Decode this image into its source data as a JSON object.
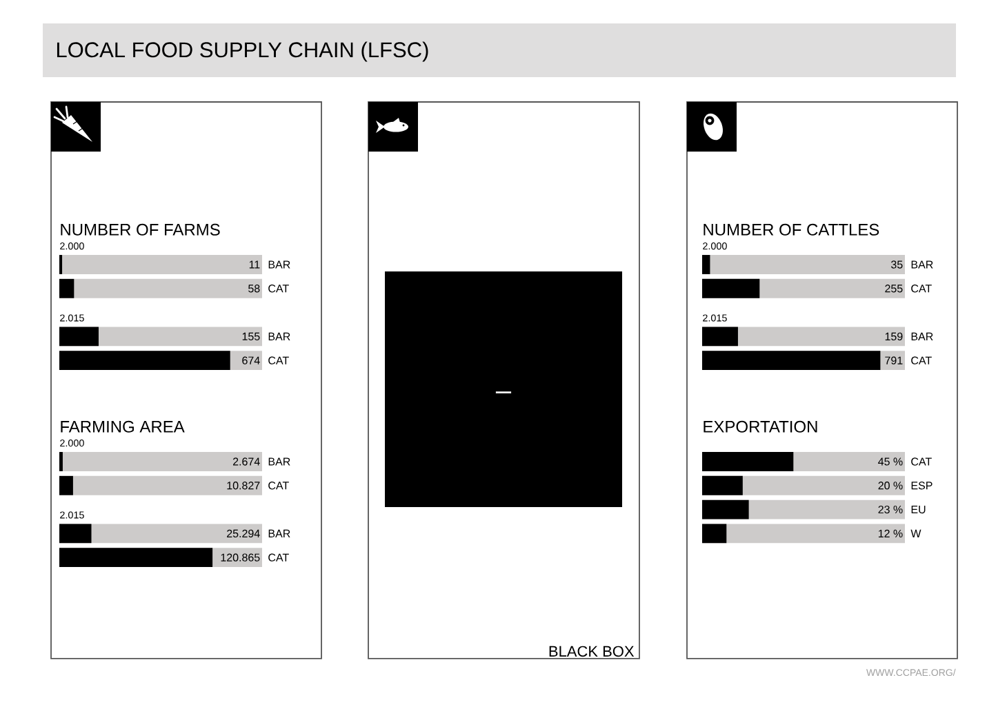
{
  "chart_data": [
    {
      "type": "other",
      "title": "LOCAL FOOD SUPPLY CHAIN  (LFSC)",
      "annotations": [
        "WWW.CCPAE.ORG/"
      ]
    },
    {
      "type": "bar",
      "orientation": "horizontal",
      "title": "NUMBER OF FARMS",
      "subtitle": "2.000",
      "categories": [
        "BAR",
        "CAT"
      ],
      "color": "#000000",
      "values": [
        11,
        58
      ],
      "data_labels": true,
      "xlim": [
        0,
        800
      ]
    },
    {
      "type": "bar",
      "orientation": "horizontal",
      "subtitle": "2.015",
      "categories": [
        "BAR",
        "CAT"
      ],
      "color": "#000000",
      "values": [
        155,
        674
      ],
      "data_labels": true,
      "xlim": [
        0,
        800
      ]
    },
    {
      "type": "bar",
      "orientation": "horizontal",
      "title": "FARMING AREA",
      "subtitle": "2.000",
      "categories": [
        "BAR",
        "CAT"
      ],
      "color": "#000000",
      "values": [
        2674,
        10827
      ],
      "value_labels": [
        "2.674",
        "10.827"
      ],
      "xlim": [
        0,
        160000
      ]
    },
    {
      "type": "bar",
      "orientation": "horizontal",
      "subtitle": "2.015",
      "categories": [
        "BAR",
        "CAT"
      ],
      "color": "#000000",
      "values": [
        25294,
        120865
      ],
      "value_labels": [
        "25.294",
        "120.865"
      ],
      "xlim": [
        0,
        160000
      ]
    },
    {
      "type": "other",
      "title": "BLACK BOX",
      "annotations": [
        "–"
      ]
    },
    {
      "type": "bar",
      "orientation": "horizontal",
      "title": "NUMBER OF CATTLES",
      "subtitle": "2.000",
      "categories": [
        "BAR",
        "CAT"
      ],
      "color": "#000000",
      "values": [
        35,
        255
      ],
      "data_labels": true,
      "xlim": [
        0,
        900
      ]
    },
    {
      "type": "bar",
      "orientation": "horizontal",
      "subtitle": "2.015",
      "categories": [
        "BAR",
        "CAT"
      ],
      "color": "#000000",
      "values": [
        159,
        791
      ],
      "data_labels": true,
      "xlim": [
        0,
        900
      ]
    },
    {
      "type": "bar",
      "orientation": "horizontal",
      "title": "EXPORTATION",
      "categories": [
        "CAT",
        "ESP",
        "EU",
        "W"
      ],
      "color": "#000000",
      "values": [
        45,
        20,
        23,
        12
      ],
      "value_labels": [
        "45 %",
        "20 %",
        "23 %",
        "12 %"
      ],
      "xlim": [
        0,
        100
      ]
    }
  ]
}
